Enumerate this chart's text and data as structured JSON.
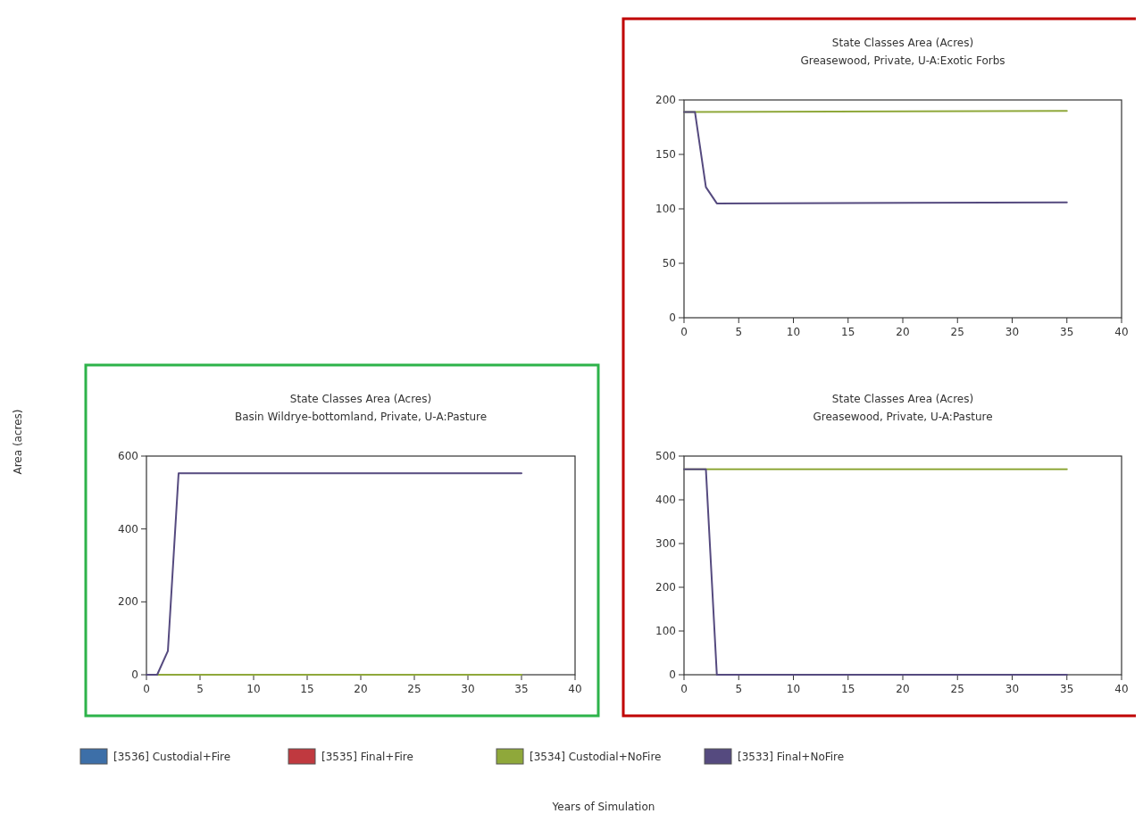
{
  "chart_data": [
    {
      "type": "line",
      "title": "State Classes Area (Acres)",
      "subtitle": "Greasewood, Private, U-A:Exotic Forbs",
      "grid": false,
      "xlim": [
        0,
        40
      ],
      "xticks": [
        0,
        5,
        10,
        15,
        20,
        25,
        30,
        35,
        40
      ],
      "ylim": [
        0,
        200
      ],
      "yticks": [
        0,
        50,
        100,
        150,
        200
      ],
      "series": [
        {
          "color": "#8fa83a",
          "x": [
            0,
            35
          ],
          "values": [
            189,
            190
          ]
        },
        {
          "color": "#554a7f",
          "x": [
            0,
            1,
            2,
            3,
            35
          ],
          "values": [
            189,
            189,
            120,
            105,
            106
          ]
        }
      ]
    },
    {
      "type": "line",
      "title": "State Classes Area (Acres)",
      "subtitle": "Basin Wildrye-bottomland, Private, U-A:Pasture",
      "xlabel": "Years of Simulation",
      "ylabel": "Area (acres)",
      "legend": "bottom",
      "grid": false,
      "xlim": [
        0,
        40
      ],
      "xticks": [
        0,
        5,
        10,
        15,
        20,
        25,
        30,
        35,
        40
      ],
      "ylim": [
        0,
        600
      ],
      "yticks": [
        0,
        200,
        400,
        600
      ],
      "series": [
        {
          "name": "[3536] Custodial+Fire",
          "color": "#3d6fa8"
        },
        {
          "name": "[3535] Final+Fire",
          "color": "#c0393f"
        },
        {
          "name": "[3534] Custodial+NoFire",
          "color": "#8fa83a",
          "x": [
            0,
            35
          ],
          "values": [
            0,
            0
          ]
        },
        {
          "name": "[3533] Final+NoFire",
          "color": "#554a7f",
          "x": [
            0,
            1,
            2,
            3,
            35
          ],
          "values": [
            0,
            0,
            65,
            553,
            553
          ]
        }
      ]
    },
    {
      "type": "line",
      "title": "State Classes Area (Acres)",
      "subtitle": "Greasewood, Private, U-A:Pasture",
      "grid": false,
      "xlim": [
        0,
        40
      ],
      "xticks": [
        0,
        5,
        10,
        15,
        20,
        25,
        30,
        35,
        40
      ],
      "ylim": [
        0,
        500
      ],
      "yticks": [
        0,
        100,
        200,
        300,
        400,
        500
      ],
      "series": [
        {
          "color": "#8fa83a",
          "x": [
            0,
            35
          ],
          "values": [
            470,
            470
          ]
        },
        {
          "color": "#554a7f",
          "x": [
            0,
            2,
            3,
            35
          ],
          "values": [
            470,
            470,
            0,
            0
          ]
        }
      ]
    }
  ]
}
